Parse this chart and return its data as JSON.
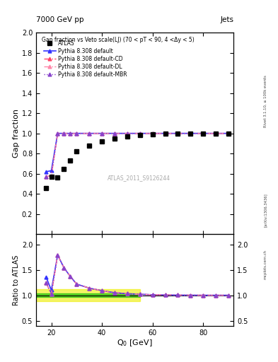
{
  "title_top": "7000 GeV pp",
  "title_right": "Jets",
  "plot_title": "Gap fraction vs Veto scale(LJ) (70 < pT < 90, 4 <Δy < 5)",
  "rivet_label": "Rivet 3.1.10, ≥ 100k events",
  "arxiv_label": "[arXiv:1306.3436]",
  "mcplots_label": "mcplots.cern.ch",
  "atlas_label": "ATLAS_2011_S9126244",
  "xlabel": "Q$_0$ [GeV]",
  "ylabel_main": "Gap fraction",
  "ylabel_ratio": "Ratio to ATLAS",
  "xlim": [
    14,
    92
  ],
  "ylim_main": [
    0.0,
    2.0
  ],
  "ylim_ratio": [
    0.4,
    2.2
  ],
  "yticks_main": [
    0.2,
    0.4,
    0.6,
    0.8,
    1.0,
    1.2,
    1.4,
    1.6,
    1.8,
    2.0
  ],
  "yticks_ratio": [
    0.5,
    1.0,
    1.5,
    2.0
  ],
  "xticks": [
    20,
    40,
    60,
    80
  ],
  "atlas_x": [
    18,
    20,
    22.5,
    25,
    27.5,
    30,
    35,
    40,
    45,
    50,
    55,
    60,
    65,
    70,
    75,
    80,
    85,
    90
  ],
  "atlas_y": [
    0.46,
    0.57,
    0.56,
    0.65,
    0.73,
    0.82,
    0.88,
    0.92,
    0.95,
    0.97,
    0.98,
    0.99,
    0.995,
    0.998,
    0.999,
    1.0,
    1.0,
    1.0
  ],
  "pythia_default_x": [
    18,
    20,
    22.5,
    25,
    27.5,
    30,
    35,
    40,
    45,
    50,
    55,
    60,
    65,
    70,
    75,
    80,
    85,
    90
  ],
  "pythia_default_y": [
    0.62,
    0.63,
    1.0,
    1.0,
    1.0,
    1.0,
    1.0,
    1.0,
    1.0,
    1.0,
    1.0,
    1.0,
    1.0,
    1.0,
    1.0,
    1.0,
    1.0,
    1.0
  ],
  "pythia_cd_y": [
    0.57,
    0.58,
    1.0,
    1.0,
    1.0,
    1.0,
    1.0,
    1.0,
    1.0,
    1.0,
    1.0,
    1.0,
    1.0,
    1.0,
    1.0,
    1.0,
    1.0,
    1.0
  ],
  "pythia_dl_y": [
    0.57,
    0.58,
    1.0,
    1.0,
    1.0,
    1.0,
    1.0,
    1.0,
    1.0,
    1.0,
    1.0,
    1.0,
    1.0,
    1.0,
    1.0,
    1.0,
    1.0,
    1.0
  ],
  "pythia_mbr_y": [
    0.57,
    0.58,
    1.0,
    1.0,
    1.0,
    1.0,
    1.0,
    1.0,
    1.0,
    1.0,
    1.0,
    1.0,
    1.0,
    1.0,
    1.0,
    1.0,
    1.0,
    1.0
  ],
  "ratio_default_y": [
    1.35,
    1.1,
    1.79,
    1.54,
    1.37,
    1.22,
    1.14,
    1.09,
    1.05,
    1.03,
    1.02,
    1.01,
    1.005,
    1.002,
    1.001,
    1.0,
    1.0,
    1.0
  ],
  "ratio_cd_y": [
    1.24,
    1.02,
    1.79,
    1.54,
    1.37,
    1.22,
    1.14,
    1.09,
    1.05,
    1.03,
    1.02,
    1.01,
    1.005,
    1.002,
    1.001,
    1.0,
    1.0,
    1.0
  ],
  "ratio_dl_y": [
    1.24,
    1.02,
    1.79,
    1.54,
    1.37,
    1.22,
    1.14,
    1.09,
    1.05,
    1.03,
    1.02,
    1.01,
    1.005,
    1.002,
    1.001,
    1.0,
    1.0,
    1.0
  ],
  "ratio_mbr_y": [
    1.24,
    1.02,
    1.79,
    1.54,
    1.37,
    1.22,
    1.14,
    1.09,
    1.05,
    1.03,
    1.02,
    1.01,
    1.005,
    1.002,
    1.001,
    1.0,
    1.0,
    1.0
  ],
  "color_default": "#3333ff",
  "color_cd": "#ff4466",
  "color_dl": "#ff88aa",
  "color_mbr": "#8844cc",
  "color_atlas": "#000000",
  "band_green_color": "#00bb00",
  "band_yellow_color": "#eeee00",
  "band_green_alpha": 0.6,
  "band_yellow_alpha": 0.6,
  "band_x_start": 14,
  "band_x_end": 55,
  "band_green_low": 0.96,
  "band_green_high": 1.04,
  "band_yellow_low": 0.88,
  "band_yellow_high": 1.12
}
